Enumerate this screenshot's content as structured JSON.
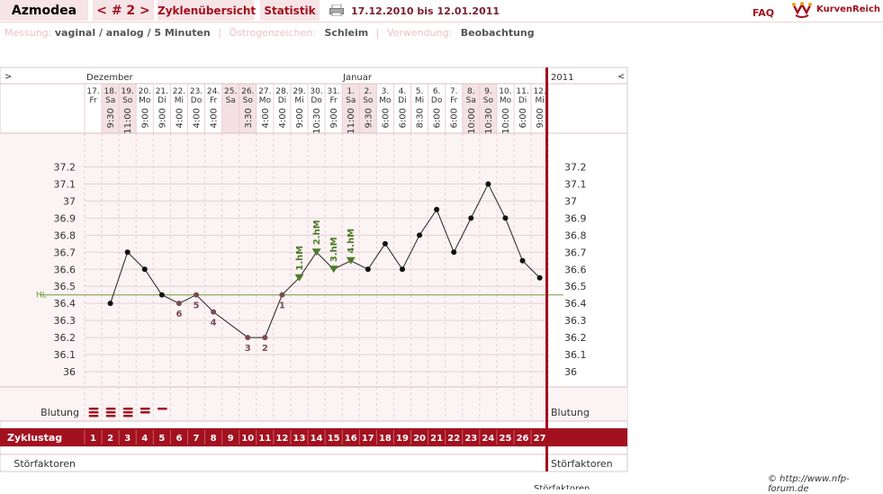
{
  "header": {
    "user": "Azmodea",
    "cycle": "< # 2 >",
    "tabs": [
      "Zyklenübersicht",
      "Statistik"
    ],
    "date_range": "17.12.2010 bis 12.01.2011",
    "faq": "FAQ",
    "logo": "KurvenReich"
  },
  "info": {
    "messung_label": "Messung:",
    "messung_value": "vaginal / analog / 5 Minuten",
    "oestrogen_label": "Östrogenzeichen:",
    "oestrogen_value": "Schleim",
    "verwendung_label": "Verwendung:",
    "verwendung_value": "Beobachtung"
  },
  "nav": {
    "prev": ">",
    "next": "<"
  },
  "months": [
    "Dezember",
    "Januar"
  ],
  "year": "2011",
  "chart_data": {
    "type": "line",
    "days": [
      {
        "date": "17.",
        "wd": "Fr",
        "time": "",
        "cycle": 1
      },
      {
        "date": "18.",
        "wd": "Sa",
        "time": "9:30",
        "cycle": 2
      },
      {
        "date": "19.",
        "wd": "So",
        "time": "11:00",
        "cycle": 3
      },
      {
        "date": "20.",
        "wd": "Mo",
        "time": "9:00",
        "cycle": 4
      },
      {
        "date": "21.",
        "wd": "Di",
        "time": "9:00",
        "cycle": 5
      },
      {
        "date": "22.",
        "wd": "Mi",
        "time": "4:00",
        "cycle": 6
      },
      {
        "date": "23.",
        "wd": "Do",
        "time": "4:00",
        "cycle": 7
      },
      {
        "date": "24.",
        "wd": "Fr",
        "time": "4:00",
        "cycle": 8
      },
      {
        "date": "25.",
        "wd": "Sa",
        "time": "",
        "cycle": 9
      },
      {
        "date": "26.",
        "wd": "So",
        "time": "3:30",
        "cycle": 10
      },
      {
        "date": "27.",
        "wd": "Mo",
        "time": "4:00",
        "cycle": 11
      },
      {
        "date": "28.",
        "wd": "Di",
        "time": "4:00",
        "cycle": 12
      },
      {
        "date": "29.",
        "wd": "Mi",
        "time": "9:00",
        "cycle": 13
      },
      {
        "date": "30.",
        "wd": "Do",
        "time": "10:30",
        "cycle": 14
      },
      {
        "date": "31.",
        "wd": "Fr",
        "time": "9:00",
        "cycle": 15
      },
      {
        "date": "1.",
        "wd": "Sa",
        "time": "11:00",
        "cycle": 16
      },
      {
        "date": "2.",
        "wd": "So",
        "time": "9:30",
        "cycle": 17
      },
      {
        "date": "3.",
        "wd": "Mo",
        "time": "6:00",
        "cycle": 18
      },
      {
        "date": "4.",
        "wd": "Di",
        "time": "6:00",
        "cycle": 19
      },
      {
        "date": "5.",
        "wd": "Mi",
        "time": "8:30",
        "cycle": 20
      },
      {
        "date": "6.",
        "wd": "Do",
        "time": "6:00",
        "cycle": 21
      },
      {
        "date": "7.",
        "wd": "Fr",
        "time": "6:00",
        "cycle": 22
      },
      {
        "date": "8.",
        "wd": "Sa",
        "time": "10:00",
        "cycle": 23
      },
      {
        "date": "9.",
        "wd": "So",
        "time": "10:30",
        "cycle": 24
      },
      {
        "date": "10.",
        "wd": "Mo",
        "time": "10:00",
        "cycle": 25
      },
      {
        "date": "11.",
        "wd": "Di",
        "time": "6:00",
        "cycle": 26
      },
      {
        "date": "12.",
        "wd": "Mi",
        "time": "9:00",
        "cycle": 27
      }
    ],
    "temps": [
      null,
      36.4,
      36.7,
      36.6,
      36.45,
      36.4,
      36.45,
      36.35,
      null,
      36.2,
      36.2,
      36.45,
      36.55,
      36.7,
      36.6,
      36.65,
      36.6,
      36.75,
      36.6,
      36.8,
      36.95,
      36.7,
      36.9,
      37.1,
      36.9,
      36.65,
      36.55
    ],
    "counted_labels": [
      {
        "day": 6,
        "label": "6"
      },
      {
        "day": 7,
        "label": "5"
      },
      {
        "day": 8,
        "label": "4"
      },
      {
        "day": 10,
        "label": "3"
      },
      {
        "day": 11,
        "label": "2"
      },
      {
        "day": 12,
        "label": "1"
      }
    ],
    "higher_measurements": [
      {
        "day": 13,
        "label": "1.hM"
      },
      {
        "day": 14,
        "label": "2.hM"
      },
      {
        "day": 15,
        "label": "3.hM"
      },
      {
        "day": 16,
        "label": "4.hM"
      }
    ],
    "hl_label": "HL",
    "hl_value": 36.45,
    "y_ticks": [
      "37.2",
      "37.1",
      "37",
      "36.9",
      "36.8",
      "36.7",
      "36.6",
      "36.5",
      "36.4",
      "36.3",
      "36.2",
      "36.1",
      "36"
    ],
    "ylim": [
      36.0,
      37.2
    ],
    "bleeding_label": "Blutung",
    "bleeding": [
      "heavy",
      "heavy",
      "heavy",
      "medium",
      "light"
    ],
    "cycle_label": "Zyklustag",
    "disturb_label": "Störfaktoren",
    "shaded_days": [
      2,
      3,
      9,
      10,
      16,
      17,
      23,
      24
    ],
    "colors": {
      "accent": "#a3111f",
      "hl": "#6f9e3a",
      "triangle": "#4d7a28",
      "counted": "#7a4b52",
      "grid": "#e9cfd3",
      "bg": "#fbf3f4",
      "shade": "#f4e1e4"
    }
  },
  "footer": {
    "copyright": "© http://www.nfp-forum.de",
    "cut": "Störfaktoren"
  }
}
